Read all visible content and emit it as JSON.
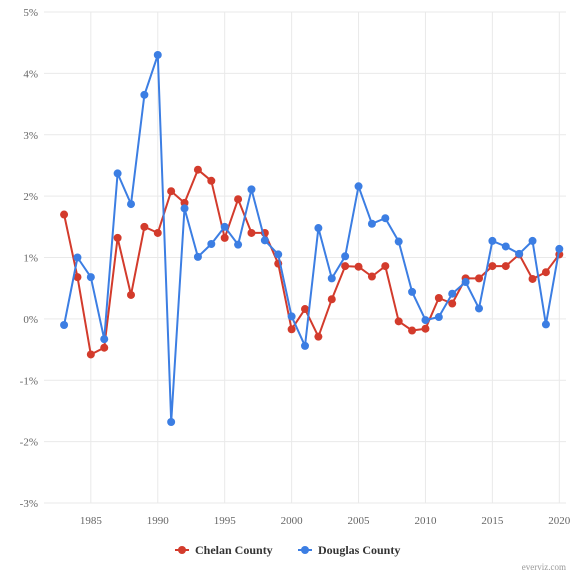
{
  "chart_data": {
    "type": "line",
    "title": "",
    "xlabel": "",
    "ylabel": "",
    "x": [
      1983,
      1984,
      1985,
      1986,
      1987,
      1988,
      1989,
      1990,
      1991,
      1992,
      1993,
      1994,
      1995,
      1996,
      1997,
      1998,
      1999,
      2000,
      2001,
      2002,
      2003,
      2004,
      2005,
      2006,
      2007,
      2008,
      2009,
      2010,
      2011,
      2012,
      2013,
      2014,
      2015,
      2016,
      2017,
      2018,
      2019,
      2020
    ],
    "xlim": [
      1981.5,
      2020.5
    ],
    "ylim": [
      -3,
      5
    ],
    "x_ticks": [
      1985,
      1990,
      1995,
      2000,
      2005,
      2010,
      2015,
      2020
    ],
    "x_tick_labels": [
      "1985",
      "1990",
      "1995",
      "2000",
      "2005",
      "2010",
      "2015",
      "2020"
    ],
    "y_ticks": [
      -3,
      -2,
      -1,
      0,
      1,
      2,
      3,
      4,
      5
    ],
    "y_tick_labels": [
      "-3%",
      "-2%",
      "-1%",
      "0%",
      "1%",
      "2%",
      "3%",
      "4%",
      "5%"
    ],
    "grid": true,
    "legend_position": "bottom-center",
    "series": [
      {
        "name": "Chelan County",
        "color": "#d33b2c",
        "values": [
          1.7,
          0.68,
          -0.58,
          -0.47,
          1.32,
          0.39,
          1.5,
          1.4,
          2.08,
          1.89,
          2.43,
          2.25,
          1.32,
          1.95,
          1.4,
          1.4,
          0.9,
          -0.17,
          0.16,
          -0.29,
          0.32,
          0.86,
          0.85,
          0.69,
          0.86,
          -0.04,
          -0.19,
          -0.16,
          0.34,
          0.25,
          0.66,
          0.66,
          0.86,
          0.86,
          1.05,
          0.65,
          0.76,
          1.05
        ]
      },
      {
        "name": "Douglas County",
        "color": "#3c7ee3",
        "values": [
          -0.1,
          1.0,
          0.68,
          -0.33,
          2.37,
          1.87,
          3.65,
          4.3,
          -1.68,
          1.8,
          1.01,
          1.22,
          1.5,
          1.21,
          2.11,
          1.28,
          1.05,
          0.04,
          -0.44,
          1.48,
          0.66,
          1.02,
          2.16,
          1.55,
          1.64,
          1.26,
          0.44,
          -0.02,
          0.03,
          0.41,
          0.6,
          0.17,
          1.27,
          1.18,
          1.06,
          1.27,
          -0.09,
          1.14
        ]
      }
    ]
  },
  "credit": "everviz.com"
}
